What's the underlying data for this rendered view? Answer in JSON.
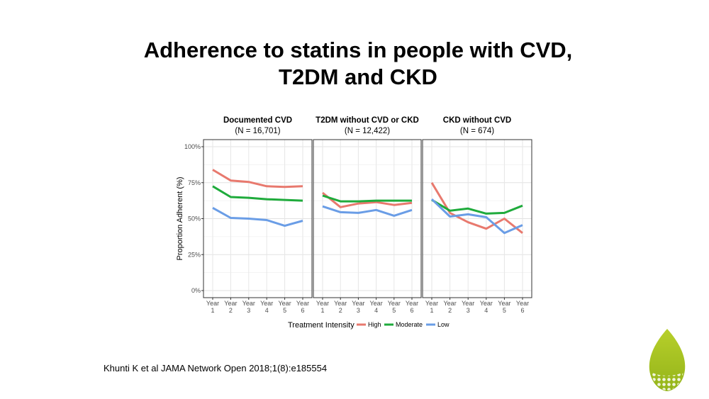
{
  "slide": {
    "title_line1": "Adherence to statins in people with CVD,",
    "title_line2": "T2DM and CKD",
    "citation": "Khunti K et al JAMA Network Open 2018;1(8):e185554"
  },
  "chart_data": {
    "type": "line",
    "ylabel": "Proportion Adherent (%)",
    "ylim": [
      0,
      100
    ],
    "yticks": [
      "0%",
      "25%",
      "50%",
      "75%",
      "100%"
    ],
    "ytick_values": [
      0,
      25,
      50,
      75,
      100
    ],
    "categories": [
      [
        "Year",
        "1"
      ],
      [
        "Year",
        "2"
      ],
      [
        "Year",
        "3"
      ],
      [
        "Year",
        "4"
      ],
      [
        "Year",
        "5"
      ],
      [
        "Year",
        "6"
      ]
    ],
    "grid": true,
    "legend": {
      "title": "Treatment Intensity",
      "placement": "bottom",
      "entries": [
        "High",
        "Moderate",
        "Low"
      ]
    },
    "colors": {
      "High": "#e8796e",
      "Moderate": "#1fab3c",
      "Low": "#6a9de6"
    },
    "panels": [
      {
        "title": "Documented CVD",
        "subtitle": "(N = 16,701)",
        "series": [
          {
            "name": "High",
            "values": [
              84,
              76.5,
              75.5,
              72.5,
              72,
              72.5
            ]
          },
          {
            "name": "Moderate",
            "values": [
              72.5,
              65,
              64.5,
              63.5,
              63,
              62.5
            ]
          },
          {
            "name": "Low",
            "values": [
              57.5,
              50.5,
              50,
              49,
              45,
              48.5
            ]
          }
        ]
      },
      {
        "title": "T2DM without CVD or CKD",
        "subtitle": "(N = 12,422)",
        "series": [
          {
            "name": "High",
            "values": [
              68,
              58,
              60.5,
              61.5,
              59.5,
              61
            ]
          },
          {
            "name": "Moderate",
            "values": [
              66,
              62,
              62,
              62.5,
              62.5,
              62.5
            ]
          },
          {
            "name": "Low",
            "values": [
              58.5,
              54.5,
              54,
              56,
              52,
              56
            ]
          }
        ]
      },
      {
        "title": "CKD without CVD",
        "subtitle": "(N = 674)",
        "series": [
          {
            "name": "High",
            "values": [
              75,
              54,
              47.5,
              43,
              50,
              40
            ]
          },
          {
            "name": "Moderate",
            "values": [
              63,
              55.5,
              57,
              53.5,
              54,
              59
            ]
          },
          {
            "name": "Low",
            "values": [
              63.5,
              51.5,
              53,
              51,
              40,
              45.5
            ]
          }
        ]
      }
    ]
  }
}
